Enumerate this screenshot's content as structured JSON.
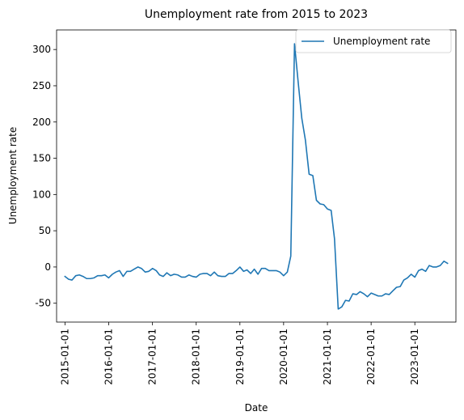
{
  "chart_data": {
    "type": "line",
    "title": "Unemployment rate from 2015 to 2023",
    "xlabel": "Date",
    "ylabel": "Unemployment rate",
    "xlim": [
      "2014-10-23",
      "2023-12-10"
    ],
    "ylim": [
      -76,
      327
    ],
    "grid": false,
    "legend": {
      "position": "top-right",
      "entries": [
        "Unemployment rate"
      ]
    },
    "x_ticks": [
      "2015-01-01",
      "2016-01-01",
      "2017-01-01",
      "2018-01-01",
      "2019-01-01",
      "2020-01-01",
      "2021-01-01",
      "2022-01-01",
      "2023-01-01"
    ],
    "y_ticks": [
      -50,
      0,
      50,
      100,
      150,
      200,
      250,
      300
    ],
    "series": [
      {
        "name": "Unemployment rate",
        "color": "#1f77b4",
        "x": [
          "2015-01-01",
          "2015-02-01",
          "2015-03-01",
          "2015-04-01",
          "2015-05-01",
          "2015-06-01",
          "2015-07-01",
          "2015-08-01",
          "2015-09-01",
          "2015-10-01",
          "2015-11-01",
          "2015-12-01",
          "2016-01-01",
          "2016-02-01",
          "2016-03-01",
          "2016-04-01",
          "2016-05-01",
          "2016-06-01",
          "2016-07-01",
          "2016-08-01",
          "2016-09-01",
          "2016-10-01",
          "2016-11-01",
          "2016-12-01",
          "2017-01-01",
          "2017-02-01",
          "2017-03-01",
          "2017-04-01",
          "2017-05-01",
          "2017-06-01",
          "2017-07-01",
          "2017-08-01",
          "2017-09-01",
          "2017-10-01",
          "2017-11-01",
          "2017-12-01",
          "2018-01-01",
          "2018-02-01",
          "2018-03-01",
          "2018-04-01",
          "2018-05-01",
          "2018-06-01",
          "2018-07-01",
          "2018-08-01",
          "2018-09-01",
          "2018-10-01",
          "2018-11-01",
          "2018-12-01",
          "2019-01-01",
          "2019-02-01",
          "2019-03-01",
          "2019-04-01",
          "2019-05-01",
          "2019-06-01",
          "2019-07-01",
          "2019-08-01",
          "2019-09-01",
          "2019-10-01",
          "2019-11-01",
          "2019-12-01",
          "2020-01-01",
          "2020-02-01",
          "2020-03-01",
          "2020-04-01",
          "2020-05-01",
          "2020-06-01",
          "2020-07-01",
          "2020-08-01",
          "2020-09-01",
          "2020-10-01",
          "2020-11-01",
          "2020-12-01",
          "2021-01-01",
          "2021-02-01",
          "2021-03-01",
          "2021-04-01",
          "2021-05-01",
          "2021-06-01",
          "2021-07-01",
          "2021-08-01",
          "2021-09-01",
          "2021-10-01",
          "2021-11-01",
          "2021-12-01",
          "2022-01-01",
          "2022-02-01",
          "2022-03-01",
          "2022-04-01",
          "2022-05-01",
          "2022-06-01",
          "2022-07-01",
          "2022-08-01",
          "2022-09-01",
          "2022-10-01",
          "2022-11-01",
          "2022-12-01",
          "2023-01-01",
          "2023-02-01",
          "2023-03-01",
          "2023-04-01",
          "2023-05-01",
          "2023-06-01",
          "2023-07-01",
          "2023-08-01",
          "2023-09-01",
          "2023-10-01"
        ],
        "values": [
          -13,
          -17,
          -18,
          -12,
          -11,
          -13,
          -16,
          -16,
          -15,
          -12,
          -12,
          -11,
          -15,
          -10,
          -7,
          -5,
          -13,
          -6,
          -6,
          -3,
          0,
          -2,
          -7,
          -6,
          -2,
          -5,
          -11,
          -13,
          -8,
          -12,
          -10,
          -11,
          -14,
          -14,
          -11,
          -13,
          -14,
          -10,
          -9,
          -9,
          -12,
          -7,
          -12,
          -13,
          -13,
          -9,
          -9,
          -5,
          0,
          -6,
          -4,
          -9,
          -3,
          -10,
          -2,
          -2,
          -5,
          -5,
          -5,
          -7,
          -12,
          -7,
          15,
          308,
          256,
          205,
          175,
          128,
          126,
          92,
          87,
          86,
          80,
          78,
          39,
          -58,
          -55,
          -46,
          -47,
          -37,
          -38,
          -34,
          -37,
          -41,
          -36,
          -38,
          -40,
          -40,
          -37,
          -38,
          -33,
          -28,
          -27,
          -18,
          -15,
          -10,
          -14,
          -5,
          -3,
          -6,
          2,
          0,
          0,
          2,
          8,
          5
        ]
      }
    ]
  }
}
